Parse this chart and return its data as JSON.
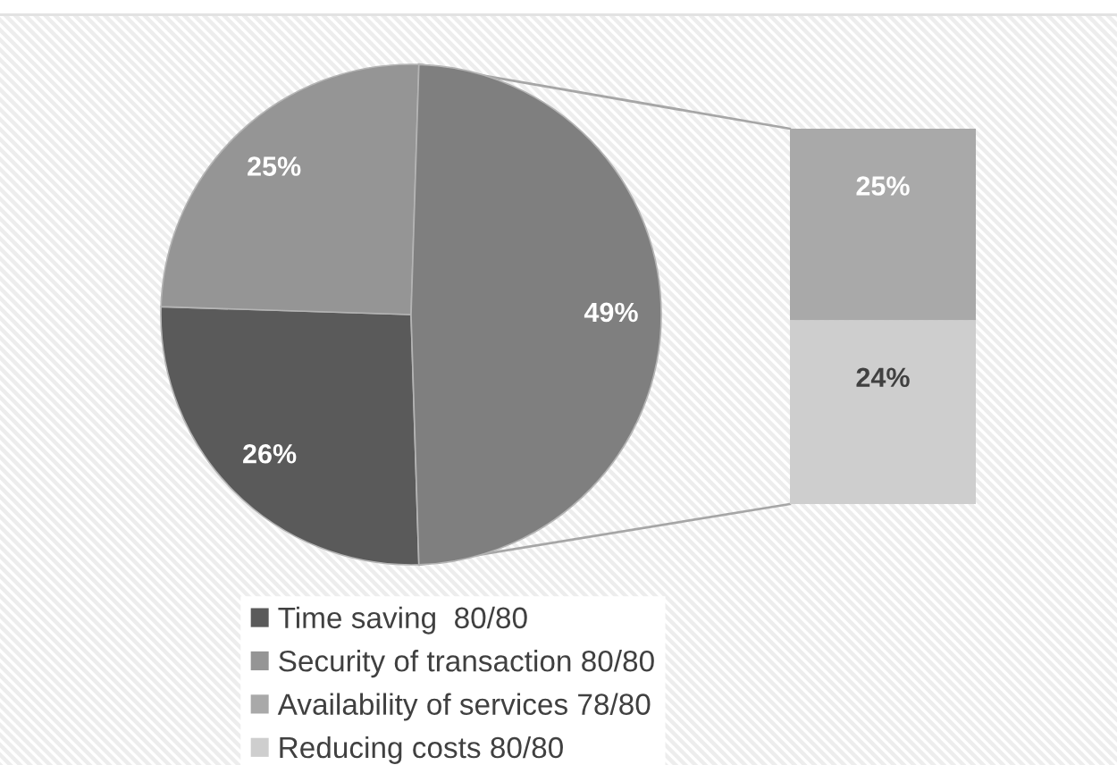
{
  "chart_data": [
    {
      "type": "pie",
      "categories": [
        "Time saving  80/80",
        "Security of transaction 80/80",
        null
      ],
      "values": [
        26,
        25,
        49
      ],
      "colors": [
        "#5a5a5a",
        "#959595",
        "#7f7f7f"
      ],
      "value_labels": [
        "26%",
        "25%",
        "49%"
      ],
      "legend": "bottom"
    },
    {
      "type": "bar",
      "stacked": true,
      "categories": [
        null
      ],
      "tick_labels": false,
      "legend": "bottom",
      "series": [
        {
          "name": "Reducing costs 80/80",
          "color": "#cecece",
          "values": [
            24
          ],
          "value_labels": [
            "24%"
          ]
        },
        {
          "name": "Availability of services 78/80",
          "color": "#a9a9a9",
          "values": [
            25
          ],
          "value_labels": [
            "25%"
          ]
        }
      ]
    }
  ]
}
